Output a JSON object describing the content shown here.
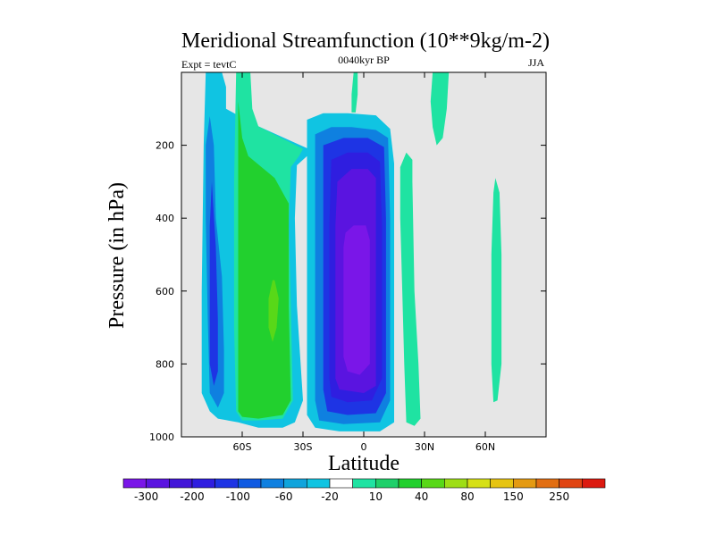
{
  "chart_data": {
    "type": "contour",
    "title": "Meridional Streamfunction (10**9kg/m-2)",
    "subtitle_left": "Expt = tevtC",
    "subtitle_center": "0040kyr BP",
    "subtitle_right": "JJA",
    "xlabel": "Latitude",
    "ylabel": "Pressure (in hPa)",
    "xlim": [
      -90,
      90
    ],
    "ylim": [
      1000,
      0
    ],
    "x_ticks": [
      {
        "value": -60,
        "label": "60S"
      },
      {
        "value": -30,
        "label": "30S"
      },
      {
        "value": 0,
        "label": "0"
      },
      {
        "value": 30,
        "label": "30N"
      },
      {
        "value": 60,
        "label": "60N"
      }
    ],
    "y_ticks": [
      {
        "value": 200,
        "label": "200"
      },
      {
        "value": 400,
        "label": "400"
      },
      {
        "value": 600,
        "label": "600"
      },
      {
        "value": 800,
        "label": "800"
      },
      {
        "value": 1000,
        "label": "1000"
      }
    ],
    "plot_background": "#e6e6e6",
    "colorbar": {
      "colors": [
        "#7a16e8",
        "#5a14e0",
        "#4216d8",
        "#2f1ee0",
        "#1e34e4",
        "#0f5ae2",
        "#0f80e0",
        "#10a4dc",
        "#10c4e2",
        "#ffffff",
        "#1fe3a2",
        "#1ed06a",
        "#22d02e",
        "#58d818",
        "#9ede16",
        "#d6e016",
        "#e6c412",
        "#e49a12",
        "#e26e12",
        "#e04412",
        "#dc1a10"
      ],
      "labels": [
        "-300",
        "-200",
        "-100",
        "-60",
        "-20",
        "10",
        "40",
        "80",
        "150",
        "250"
      ]
    },
    "regions": [
      {
        "level": "-20",
        "color": "#10c4e2",
        "points": [
          [
            -78,
            0
          ],
          [
            -70,
            0
          ],
          [
            -68,
            40
          ],
          [
            -68,
            100
          ],
          [
            -52,
            148
          ],
          [
            -28,
            208
          ],
          [
            -28,
            230
          ],
          [
            -33,
            255
          ],
          [
            -34,
            400
          ],
          [
            -33,
            640
          ],
          [
            -30,
            900
          ],
          [
            -34,
            960
          ],
          [
            -40,
            975
          ],
          [
            -52,
            975
          ],
          [
            -62,
            960
          ],
          [
            -72,
            950
          ],
          [
            -76,
            930
          ],
          [
            -80,
            880
          ],
          [
            -80,
            600
          ],
          [
            -79,
            200
          ]
        ]
      },
      {
        "level": "-60",
        "color": "#0f80e0",
        "points": [
          [
            -76,
            120
          ],
          [
            -74,
            200
          ],
          [
            -73,
            400
          ],
          [
            -70,
            560
          ],
          [
            -69,
            760
          ],
          [
            -69,
            880
          ],
          [
            -72,
            920
          ],
          [
            -76,
            880
          ],
          [
            -77,
            680
          ],
          [
            -78,
            400
          ],
          [
            -78,
            200
          ]
        ]
      },
      {
        "level": "-100",
        "color": "#1e34e4",
        "points": [
          [
            -75,
            300
          ],
          [
            -73,
            480
          ],
          [
            -72,
            680
          ],
          [
            -72,
            820
          ],
          [
            -74,
            860
          ],
          [
            -76,
            800
          ],
          [
            -76,
            600
          ],
          [
            -76,
            420
          ]
        ]
      },
      {
        "level": "10",
        "color": "#1fe3a2",
        "points": [
          [
            -63,
            0
          ],
          [
            -56,
            0
          ],
          [
            -55,
            100
          ],
          [
            -52,
            148
          ],
          [
            -30,
            210
          ],
          [
            -32,
            230
          ],
          [
            -36,
            260
          ],
          [
            -37,
            420
          ],
          [
            -36,
            640
          ],
          [
            -35,
            900
          ],
          [
            -40,
            950
          ],
          [
            -52,
            955
          ],
          [
            -60,
            955
          ],
          [
            -63,
            930
          ],
          [
            -64,
            700
          ],
          [
            -64,
            300
          ]
        ]
      },
      {
        "level": "40",
        "color": "#22d02e",
        "points": [
          [
            -62,
            80
          ],
          [
            -60,
            180
          ],
          [
            -57,
            230
          ],
          [
            -44,
            290
          ],
          [
            -37,
            360
          ],
          [
            -37,
            640
          ],
          [
            -36,
            900
          ],
          [
            -40,
            940
          ],
          [
            -52,
            950
          ],
          [
            -60,
            945
          ],
          [
            -62,
            930
          ],
          [
            -62,
            500
          ]
        ]
      },
      {
        "level": "80",
        "color": "#58d818",
        "points": [
          [
            -44,
            570
          ],
          [
            -42,
            620
          ],
          [
            -43,
            700
          ],
          [
            -45,
            740
          ],
          [
            -47,
            700
          ],
          [
            -47,
            620
          ],
          [
            -45,
            570
          ]
        ]
      },
      {
        "level": "-20",
        "color": "#10c4e2",
        "points": [
          [
            -28,
            130
          ],
          [
            -20,
            112
          ],
          [
            -8,
            112
          ],
          [
            6,
            118
          ],
          [
            13,
            155
          ],
          [
            15,
            250
          ],
          [
            15,
            960
          ],
          [
            8,
            985
          ],
          [
            -12,
            985
          ],
          [
            -24,
            975
          ],
          [
            -28,
            940
          ],
          [
            -28,
            400
          ]
        ]
      },
      {
        "level": "-60",
        "color": "#0f80e0",
        "points": [
          [
            -24,
            170
          ],
          [
            -16,
            150
          ],
          [
            -6,
            150
          ],
          [
            6,
            158
          ],
          [
            12,
            180
          ],
          [
            13,
            400
          ],
          [
            13,
            900
          ],
          [
            8,
            960
          ],
          [
            -10,
            965
          ],
          [
            -22,
            955
          ],
          [
            -24,
            900
          ],
          [
            -24,
            400
          ]
        ]
      },
      {
        "level": "-100",
        "color": "#1e34e4",
        "points": [
          [
            -20,
            200
          ],
          [
            -10,
            180
          ],
          [
            2,
            180
          ],
          [
            10,
            205
          ],
          [
            11,
            400
          ],
          [
            11,
            880
          ],
          [
            6,
            935
          ],
          [
            -8,
            940
          ],
          [
            -18,
            930
          ],
          [
            -20,
            870
          ],
          [
            -20,
            400
          ]
        ]
      },
      {
        "level": "-200",
        "color": "#2f1ee0",
        "points": [
          [
            -16,
            240
          ],
          [
            -8,
            220
          ],
          [
            2,
            220
          ],
          [
            8,
            245
          ],
          [
            9,
            420
          ],
          [
            9,
            840
          ],
          [
            4,
            900
          ],
          [
            -8,
            905
          ],
          [
            -16,
            890
          ],
          [
            -17,
            840
          ],
          [
            -17,
            420
          ]
        ]
      },
      {
        "level": "-300",
        "color": "#5a14e0",
        "points": [
          [
            -13,
            300
          ],
          [
            -6,
            265
          ],
          [
            2,
            265
          ],
          [
            6,
            290
          ],
          [
            6,
            860
          ],
          [
            0,
            880
          ],
          [
            -12,
            870
          ],
          [
            -14,
            840
          ],
          [
            -14,
            420
          ]
        ]
      },
      {
        "level": "-300",
        "color": "#7a16e8",
        "points": [
          [
            -9,
            440
          ],
          [
            -5,
            420
          ],
          [
            1,
            420
          ],
          [
            3,
            460
          ],
          [
            3,
            800
          ],
          [
            -2,
            830
          ],
          [
            -8,
            820
          ],
          [
            -10,
            780
          ],
          [
            -10,
            480
          ]
        ]
      },
      {
        "level": "10",
        "color": "#1fe3a2",
        "points": [
          [
            -5,
            0
          ],
          [
            -3,
            0
          ],
          [
            -3,
            60
          ],
          [
            -4,
            110
          ],
          [
            -6,
            110
          ],
          [
            -6,
            60
          ]
        ]
      },
      {
        "level": "10",
        "color": "#1fe3a2",
        "points": [
          [
            18,
            260
          ],
          [
            21,
            220
          ],
          [
            24,
            240
          ],
          [
            24,
            300
          ],
          [
            25,
            600
          ],
          [
            27,
            800
          ],
          [
            28,
            950
          ],
          [
            25,
            970
          ],
          [
            21,
            960
          ],
          [
            20,
            800
          ],
          [
            19,
            600
          ],
          [
            18,
            400
          ]
        ]
      },
      {
        "level": "10",
        "color": "#1fe3a2",
        "points": [
          [
            34,
            0
          ],
          [
            42,
            0
          ],
          [
            41,
            100
          ],
          [
            39,
            180
          ],
          [
            36,
            200
          ],
          [
            34,
            150
          ],
          [
            33,
            80
          ]
        ]
      },
      {
        "level": "10",
        "color": "#1fe3a2",
        "points": [
          [
            65,
            290
          ],
          [
            67,
            330
          ],
          [
            68,
            500
          ],
          [
            68,
            800
          ],
          [
            66,
            900
          ],
          [
            64,
            905
          ],
          [
            63,
            800
          ],
          [
            63,
            500
          ],
          [
            64,
            330
          ]
        ]
      }
    ]
  }
}
